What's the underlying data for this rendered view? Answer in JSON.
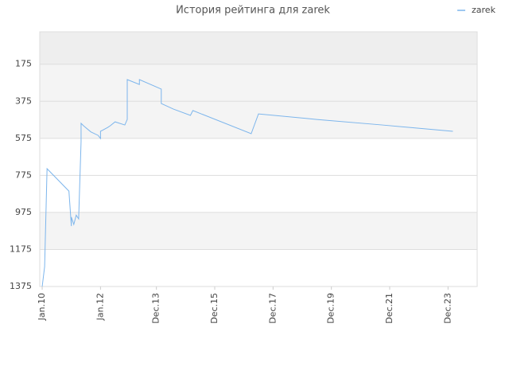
{
  "chart_data": {
    "type": "line",
    "title": "История рейтинга для zarek",
    "x": [
      "2010-01",
      "2010-02",
      "2010-03",
      "2010-12",
      "2011-01",
      "2011-01",
      "2011-02",
      "2011-03",
      "2011-04",
      "2011-05",
      "2011-05",
      "2011-06",
      "2011-09",
      "2011-12",
      "2012-01",
      "2012-01",
      "2012-04",
      "2012-05",
      "2012-07",
      "2012-11",
      "2012-12",
      "2012-12",
      "2012-12",
      "2013-05",
      "2013-05",
      "2014-02",
      "2014-02",
      "2014-07",
      "2015-02",
      "2015-03",
      "2017-03",
      "2017-06",
      "2019-06",
      "2021-09",
      "2024-02"
    ],
    "series": [
      {
        "name": "zarek",
        "color": "#7cb5ec",
        "values": [
          1375,
          1268,
          739,
          860,
          1049,
          1000,
          1040,
          990,
          1010,
          593,
          494,
          507,
          540,
          559,
          576,
          537,
          516,
          507,
          486,
          503,
          473,
          301,
          258,
          284,
          258,
          309,
          387,
          417,
          451,
          425,
          550,
          443,
          473,
          503,
          537
        ]
      }
    ],
    "xlim": [
      "2009-12",
      "2024-12"
    ],
    "xticks": [
      {
        "value": "2010-01",
        "label": "Jan.10"
      },
      {
        "value": "2012-01",
        "label": "Jan.12"
      },
      {
        "value": "2013-12",
        "label": "Dec.13"
      },
      {
        "value": "2015-12",
        "label": "Dec.15"
      },
      {
        "value": "2017-12",
        "label": "Dec.17"
      },
      {
        "value": "2019-12",
        "label": "Dec.19"
      },
      {
        "value": "2021-12",
        "label": "Dec.21"
      },
      {
        "value": "2023-12",
        "label": "Dec.23"
      }
    ],
    "ylim": [
      1375,
      0
    ],
    "y_reversed": true,
    "yticks": [
      175,
      375,
      575,
      775,
      975,
      1175,
      1375
    ],
    "grid": true,
    "legend": "top-right"
  }
}
